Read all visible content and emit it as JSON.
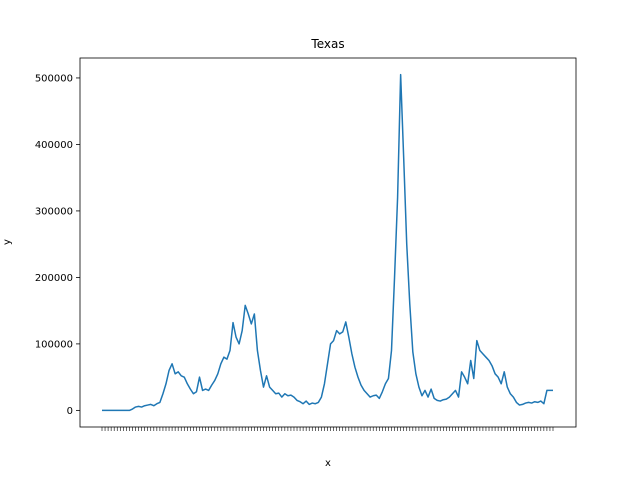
{
  "chart_data": {
    "type": "line",
    "title": "Texas",
    "xlabel": "x",
    "ylabel": "y",
    "ylim": [
      -25000,
      530000
    ],
    "yticks": [
      0,
      100000,
      200000,
      300000,
      400000,
      500000
    ],
    "ytick_labels": [
      "0",
      "100000",
      "200000",
      "300000",
      "400000",
      "500000"
    ],
    "grid": false,
    "series": [
      {
        "color": "#1f77b4",
        "values": [
          0,
          0,
          0,
          0,
          0,
          0,
          0,
          0,
          0,
          0,
          2000,
          5000,
          6000,
          5000,
          7000,
          8000,
          9000,
          7000,
          10000,
          12000,
          25000,
          40000,
          60000,
          70000,
          55000,
          58000,
          52000,
          50000,
          40000,
          32000,
          25000,
          28000,
          50000,
          30000,
          32000,
          30000,
          38000,
          45000,
          55000,
          70000,
          80000,
          77000,
          90000,
          132000,
          110000,
          100000,
          120000,
          158000,
          145000,
          130000,
          145000,
          90000,
          60000,
          35000,
          52000,
          35000,
          30000,
          25000,
          26000,
          20000,
          25000,
          22000,
          23000,
          20000,
          15000,
          13000,
          10000,
          14000,
          9000,
          11000,
          10000,
          12000,
          20000,
          40000,
          70000,
          100000,
          105000,
          120000,
          115000,
          118000,
          133000,
          110000,
          85000,
          65000,
          50000,
          38000,
          30000,
          25000,
          20000,
          22000,
          23000,
          18000,
          28000,
          40000,
          48000,
          90000,
          200000,
          320000,
          505000,
          380000,
          250000,
          160000,
          88000,
          55000,
          35000,
          22000,
          30000,
          20000,
          32000,
          18000,
          15000,
          14000,
          16000,
          17000,
          20000,
          25000,
          30000,
          20000,
          58000,
          50000,
          40000,
          75000,
          48000,
          105000,
          90000,
          85000,
          80000,
          75000,
          67000,
          55000,
          50000,
          40000,
          58000,
          35000,
          25000,
          20000,
          12000,
          8000,
          9000,
          11000,
          12000,
          11000,
          13000,
          12000,
          14000,
          10000,
          30000,
          30000,
          30000
        ]
      }
    ]
  }
}
